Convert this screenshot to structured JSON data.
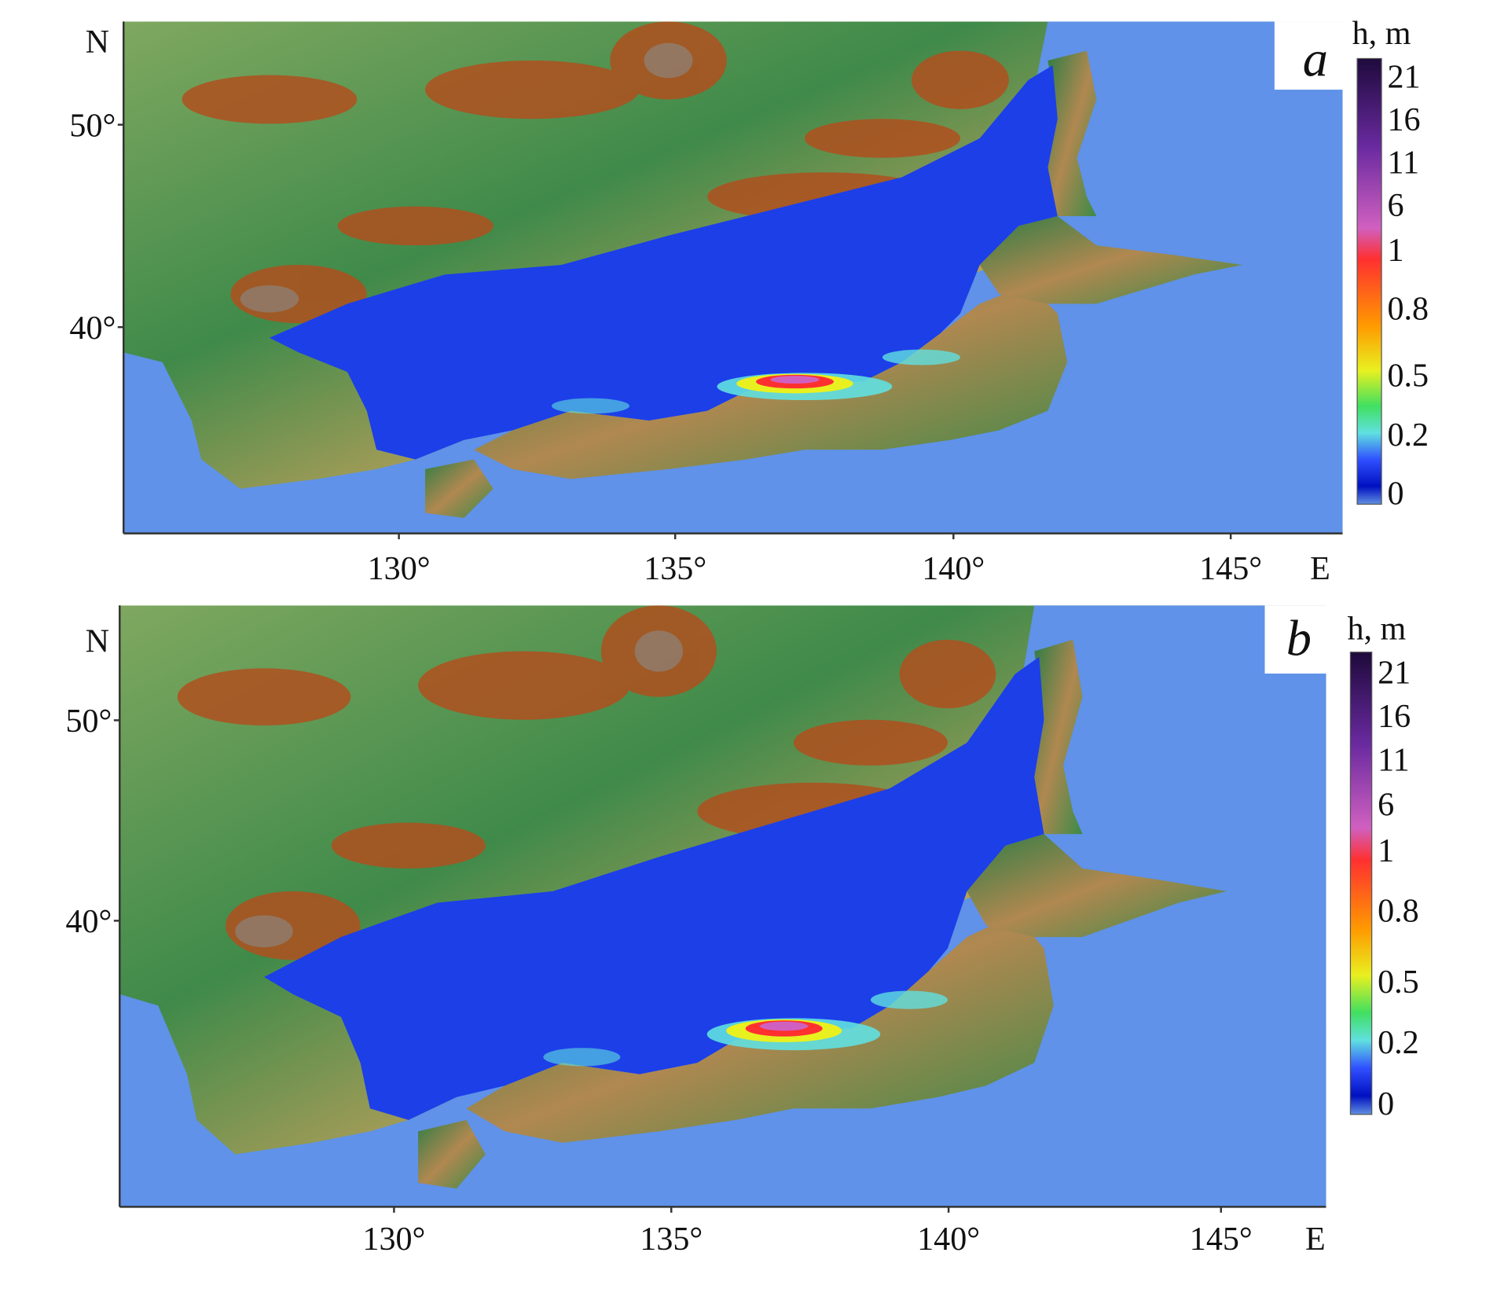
{
  "panels": [
    {
      "label": "a",
      "north": "N",
      "east": "E",
      "lat_ticks": [
        "50°",
        "40°"
      ],
      "lon_ticks": [
        "130°",
        "135°",
        "140°",
        "145°"
      ],
      "colorbar": {
        "title": "h, m",
        "labels": [
          "21",
          "16",
          "11",
          "6",
          "1",
          "0.8",
          "0.5",
          "0.2",
          "0"
        ]
      }
    },
    {
      "label": "b",
      "north": "N",
      "east": "E",
      "lat_ticks": [
        "50°",
        "40°"
      ],
      "lon_ticks": [
        "130°",
        "135°",
        "140°",
        "145°"
      ],
      "colorbar": {
        "title": "h, m",
        "labels": [
          "21",
          "16",
          "11",
          "6",
          "1",
          "0.8",
          "0.5",
          "0.2",
          "0"
        ]
      }
    }
  ]
}
